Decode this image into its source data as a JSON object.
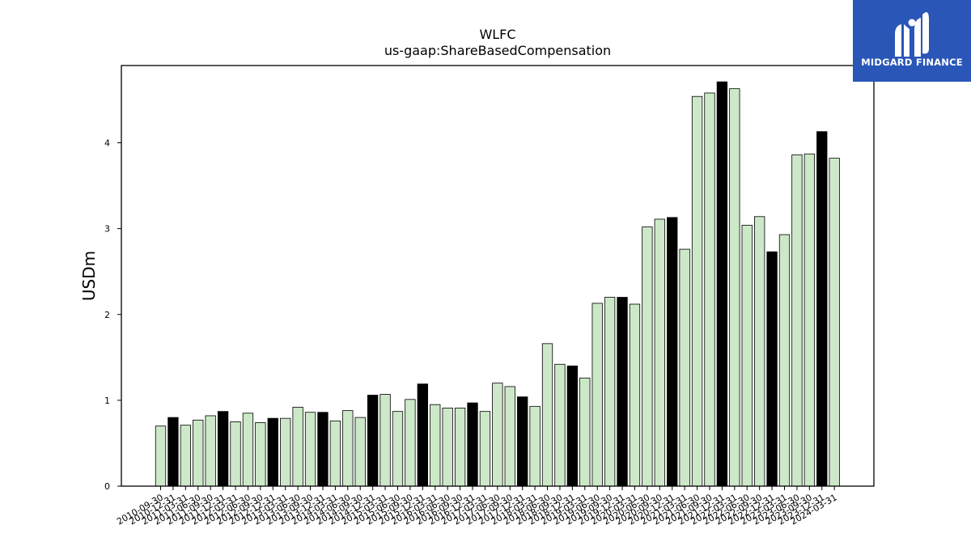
{
  "brand": {
    "name": "MIDGARD FINANCE",
    "bg_color": "#2a56b8"
  },
  "chart_data": {
    "type": "bar",
    "title": "WLFC",
    "subtitle": "us-gaap:ShareBasedCompensation",
    "xlabel": "",
    "ylabel": "USDm",
    "ylim": [
      0,
      4.9
    ],
    "yticks": [
      0,
      1,
      2,
      3,
      4
    ],
    "grid": false,
    "colors": {
      "default": "#cce8c8",
      "highlight": "#000000"
    },
    "categories": [
      "2010-09-30",
      "2010-12-31",
      "2011-03-31",
      "2011-06-30",
      "2011-09-30",
      "2011-12-31",
      "2012-03-31",
      "2012-06-30",
      "2012-09-30",
      "2012-12-31",
      "2013-03-31",
      "2013-06-30",
      "2013-09-30",
      "2013-12-31",
      "2014-03-31",
      "2014-06-30",
      "2014-09-30",
      "2014-12-31",
      "2015-03-31",
      "2015-06-30",
      "2015-09-30",
      "2015-12-31",
      "2016-03-31",
      "2016-06-30",
      "2016-09-30",
      "2016-12-31",
      "2017-03-31",
      "2017-06-30",
      "2017-09-30",
      "2017-12-31",
      "2018-03-31",
      "2018-06-30",
      "2018-09-30",
      "2018-12-31",
      "2019-03-31",
      "2019-06-30",
      "2019-09-30",
      "2019-12-31",
      "2020-03-31",
      "2020-06-30",
      "2020-09-30",
      "2020-12-31",
      "2021-03-31",
      "2021-06-30",
      "2021-09-30",
      "2021-12-31",
      "2022-03-31",
      "2022-06-30",
      "2022-09-30",
      "2022-12-31",
      "2023-03-31",
      "2023-06-30",
      "2023-09-30",
      "2023-12-31",
      "2024-03-31"
    ],
    "values": [
      0.7,
      0.8,
      0.71,
      0.77,
      0.82,
      0.87,
      0.75,
      0.85,
      0.74,
      0.79,
      0.79,
      0.92,
      0.86,
      0.86,
      0.76,
      0.88,
      0.8,
      1.06,
      1.07,
      0.87,
      1.01,
      1.19,
      0.95,
      0.91,
      0.91,
      0.97,
      0.87,
      1.2,
      1.16,
      1.04,
      0.93,
      1.66,
      1.42,
      1.4,
      1.26,
      2.13,
      2.2,
      2.2,
      2.12,
      3.02,
      3.11,
      3.13,
      2.76,
      4.54,
      4.58,
      4.71,
      4.63,
      3.04,
      3.14,
      2.73,
      2.93,
      3.86,
      3.87,
      4.13,
      3.82
    ],
    "highlight": [
      false,
      true,
      false,
      false,
      false,
      true,
      false,
      false,
      false,
      true,
      false,
      false,
      false,
      true,
      false,
      false,
      false,
      true,
      false,
      false,
      false,
      true,
      false,
      false,
      false,
      true,
      false,
      false,
      false,
      true,
      false,
      false,
      false,
      true,
      false,
      false,
      false,
      true,
      false,
      false,
      false,
      true,
      false,
      false,
      false,
      true,
      false,
      false,
      false,
      true,
      false,
      false,
      false,
      true,
      false
    ]
  }
}
